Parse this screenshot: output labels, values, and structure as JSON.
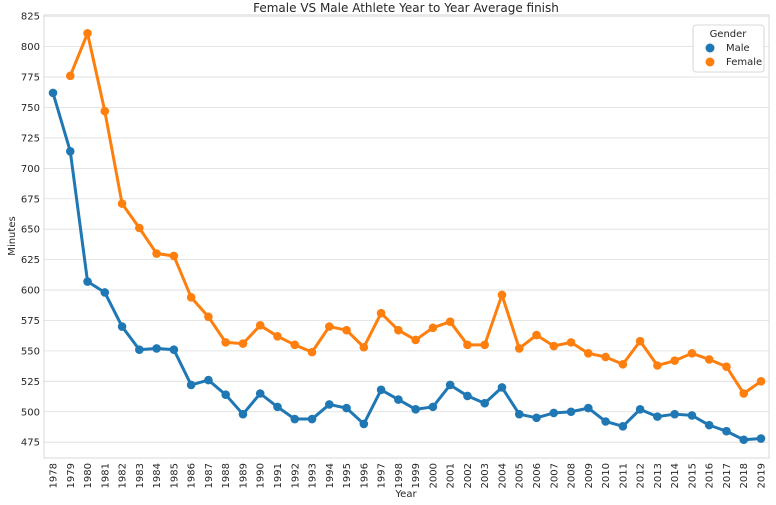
{
  "chart_data": {
    "type": "line",
    "title": "Female VS Male Athlete Year to Year Average finish",
    "xlabel": "Year",
    "ylabel": "Minutes",
    "ylim": [
      462,
      826
    ],
    "yticks": [
      475,
      500,
      525,
      550,
      575,
      600,
      625,
      650,
      675,
      700,
      725,
      750,
      775,
      800,
      825
    ],
    "grid": true,
    "legend": {
      "title": "Gender",
      "position": "top-right"
    },
    "categories": [
      "1978",
      "1979",
      "1980",
      "1981",
      "1982",
      "1983",
      "1984",
      "1985",
      "1986",
      "1987",
      "1988",
      "1989",
      "1990",
      "1991",
      "1992",
      "1993",
      "1994",
      "1995",
      "1996",
      "1997",
      "1998",
      "1999",
      "2000",
      "2001",
      "2002",
      "2003",
      "2004",
      "2005",
      "2006",
      "2007",
      "2008",
      "2009",
      "2010",
      "2011",
      "2012",
      "2013",
      "2014",
      "2015",
      "2016",
      "2017",
      "2018",
      "2019"
    ],
    "series": [
      {
        "name": "Male",
        "color": "#1f77b4",
        "values": [
          762,
          714,
          607,
          598,
          570,
          551,
          552,
          551,
          522,
          526,
          514,
          498,
          515,
          504,
          494,
          494,
          506,
          503,
          490,
          518,
          510,
          502,
          504,
          522,
          513,
          507,
          520,
          498,
          495,
          499,
          500,
          503,
          492,
          488,
          502,
          496,
          498,
          497,
          489,
          484,
          477,
          478
        ]
      },
      {
        "name": "Female",
        "color": "#ff7f0e",
        "values": [
          null,
          776,
          811,
          747,
          671,
          651,
          630,
          628,
          594,
          578,
          557,
          556,
          571,
          562,
          555,
          549,
          570,
          567,
          553,
          581,
          567,
          559,
          569,
          574,
          555,
          555,
          596,
          552,
          563,
          554,
          557,
          548,
          545,
          539,
          558,
          538,
          542,
          548,
          543,
          537,
          515,
          525
        ]
      }
    ]
  }
}
